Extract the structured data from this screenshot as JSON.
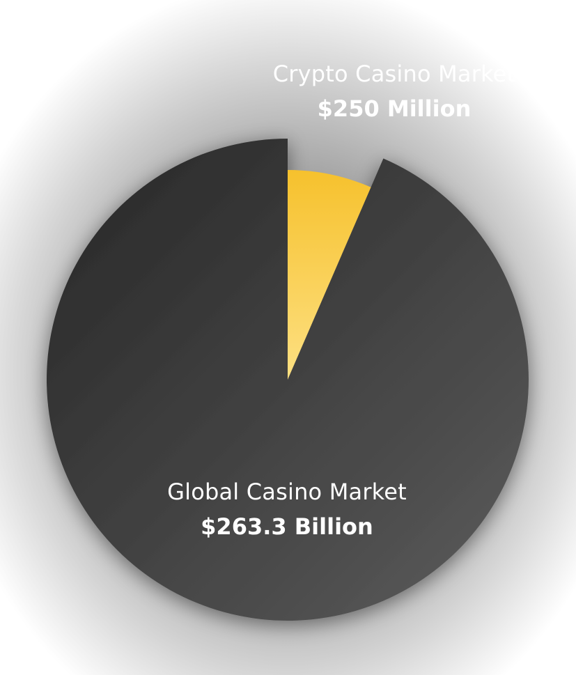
{
  "chart_data": {
    "type": "pie",
    "slices": [
      {
        "name": "Crypto Casino Market",
        "value_text": "$250 Million",
        "value": 0.25,
        "value_unit": "billion USD",
        "color": "#f7c63a",
        "exploded": false
      },
      {
        "name": "Global Casino Market",
        "value_text": "$263.3 Billion",
        "value": 263.3,
        "value_unit": "billion USD",
        "color": "#4a4a4a",
        "exploded": true
      }
    ],
    "crypto_slice_display_fraction": 0.065,
    "title": "",
    "legend": "none"
  }
}
